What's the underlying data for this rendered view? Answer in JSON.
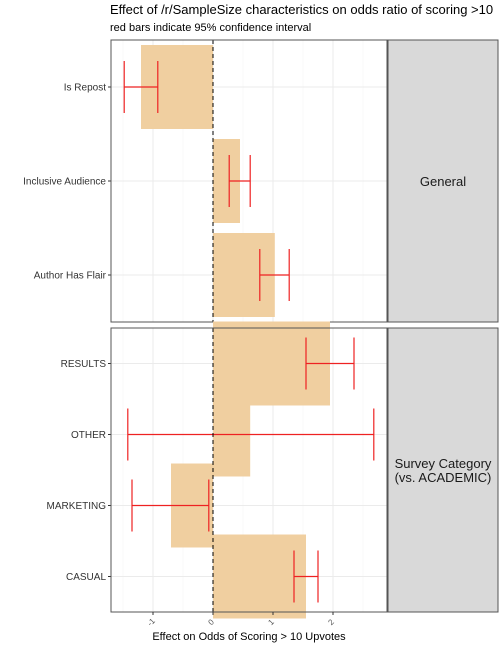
{
  "chart_data": {
    "type": "bar",
    "title": "Effect of /r/SampleSize characteristics on odds ratio of scoring >10",
    "subtitle": "red bars indicate 95% confidence interval",
    "xlabel": "Effect on Odds of Scoring > 10 Upvotes",
    "xlim": [
      -1.7,
      2.9
    ],
    "xticks": [
      "-1",
      "0",
      "1",
      "2"
    ],
    "grid": true,
    "reference_line": 0,
    "colors": {
      "bar": "#f0cfa0",
      "ci": "#ee2222",
      "strip": "#d9d9d9",
      "panel_border": "#555555"
    },
    "panels": [
      {
        "label": "General",
        "rows": [
          {
            "category": "Is Repost",
            "value": -1.2,
            "estimate": -0.92,
            "ci_low": -1.48,
            "ci_high": -0.92
          },
          {
            "category": "Inclusive Audience",
            "value": 0.45,
            "estimate": 0.27,
            "ci_low": 0.27,
            "ci_high": 0.62
          },
          {
            "category": "Author Has Flair",
            "value": 1.03,
            "estimate": 0.78,
            "ci_low": 0.78,
            "ci_high": 1.27
          }
        ]
      },
      {
        "label": "Survey Category\n(vs. ACADEMIC)",
        "rows": [
          {
            "category": "RESULTS",
            "value": 1.95,
            "estimate": 1.55,
            "ci_low": 1.55,
            "ci_high": 2.35
          },
          {
            "category": "OTHER",
            "value": 0.62,
            "estimate": 0.62,
            "ci_low": -1.42,
            "ci_high": 2.68
          },
          {
            "category": "MARKETING",
            "value": -0.7,
            "estimate": -0.07,
            "ci_low": -1.35,
            "ci_high": -0.07
          },
          {
            "category": "CASUAL",
            "value": 1.55,
            "estimate": 1.35,
            "ci_low": 1.35,
            "ci_high": 1.75
          }
        ]
      }
    ]
  }
}
